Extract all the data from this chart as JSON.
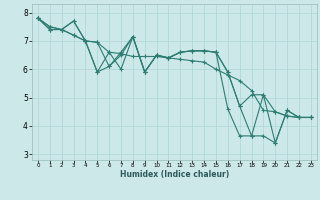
{
  "background_color": "#cce8e8",
  "grid_color": "#b0d8d8",
  "line_color": "#2d7d72",
  "marker_color": "#2d7d72",
  "xlabel": "Humidex (Indice chaleur)",
  "xlim": [
    -0.5,
    23.5
  ],
  "ylim": [
    2.8,
    8.3
  ],
  "yticks": [
    3,
    4,
    5,
    6,
    7,
    8
  ],
  "xticks": [
    0,
    1,
    2,
    3,
    4,
    5,
    6,
    7,
    8,
    9,
    10,
    11,
    12,
    13,
    14,
    15,
    16,
    17,
    18,
    19,
    20,
    21,
    22,
    23
  ],
  "lines": [
    [
      7.8,
      7.4,
      7.4,
      7.2,
      7.0,
      5.9,
      6.6,
      6.0,
      7.15,
      5.9,
      6.5,
      6.4,
      6.6,
      6.65,
      6.65,
      6.6,
      5.9,
      4.7,
      5.1,
      5.1,
      4.5,
      4.35,
      4.3,
      4.3
    ],
    [
      7.8,
      7.4,
      7.4,
      7.2,
      7.0,
      6.95,
      6.6,
      6.55,
      6.45,
      6.45,
      6.45,
      6.4,
      6.35,
      6.3,
      6.25,
      6.0,
      5.8,
      5.6,
      5.25,
      4.55,
      4.5,
      4.35,
      4.3,
      4.3
    ],
    [
      7.8,
      7.5,
      7.4,
      7.7,
      7.0,
      6.95,
      6.1,
      6.6,
      7.15,
      5.9,
      6.5,
      6.4,
      6.6,
      6.65,
      6.65,
      6.6,
      5.9,
      4.7,
      3.65,
      3.65,
      3.4,
      4.55,
      4.3,
      4.3
    ],
    [
      7.8,
      7.5,
      7.4,
      7.7,
      7.0,
      5.9,
      6.1,
      6.5,
      7.15,
      5.9,
      6.5,
      6.4,
      6.6,
      6.65,
      6.65,
      6.6,
      4.6,
      3.65,
      3.65,
      5.1,
      3.4,
      4.55,
      4.3,
      4.3
    ]
  ],
  "figwidth": 3.2,
  "figheight": 2.0,
  "dpi": 100
}
